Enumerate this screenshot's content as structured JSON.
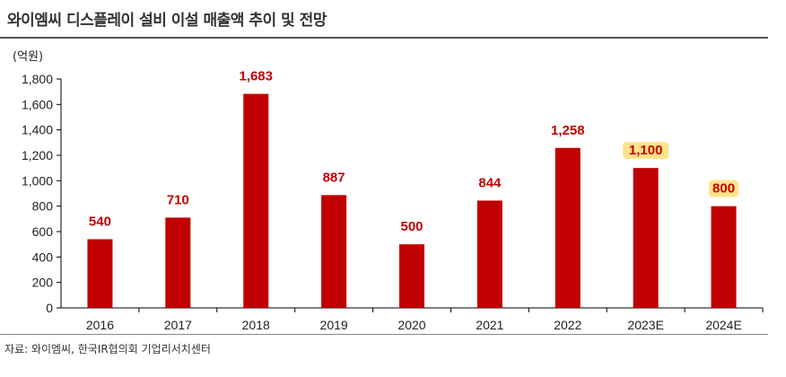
{
  "title": "와이엠씨 디스플레이 설비 이설 매출액 추이 및 전망",
  "unit_label": "(억원)",
  "source": "자료: 와이엠씨, 한국IR협의회 기업리서치센터",
  "colors": {
    "bar": "#c00000",
    "label": "#c00000",
    "highlight": "#ffe28a",
    "axis": "#000000"
  },
  "chart_data": {
    "type": "bar",
    "title": "와이엠씨 디스플레이 설비 이설 매출액 추이 및 전망",
    "xlabel": "",
    "ylabel": "(억원)",
    "categories": [
      "2016",
      "2017",
      "2018",
      "2019",
      "2020",
      "2021",
      "2022",
      "2023E",
      "2024E"
    ],
    "values": [
      540,
      710,
      1683,
      887,
      500,
      844,
      1258,
      1100,
      800
    ],
    "value_labels": [
      "540",
      "710",
      "1,683",
      "887",
      "500",
      "844",
      "1,258",
      "1,100",
      "800"
    ],
    "highlighted": [
      false,
      false,
      false,
      false,
      false,
      false,
      false,
      true,
      true
    ],
    "ylim": [
      0,
      1800
    ],
    "yticks": [
      0,
      200,
      400,
      600,
      800,
      1000,
      1200,
      1400,
      1600,
      1800
    ],
    "ytick_labels": [
      "0",
      "200",
      "400",
      "600",
      "800",
      "1,000",
      "1,200",
      "1,400",
      "1,600",
      "1,800"
    ],
    "grid": false,
    "legend": "none"
  }
}
